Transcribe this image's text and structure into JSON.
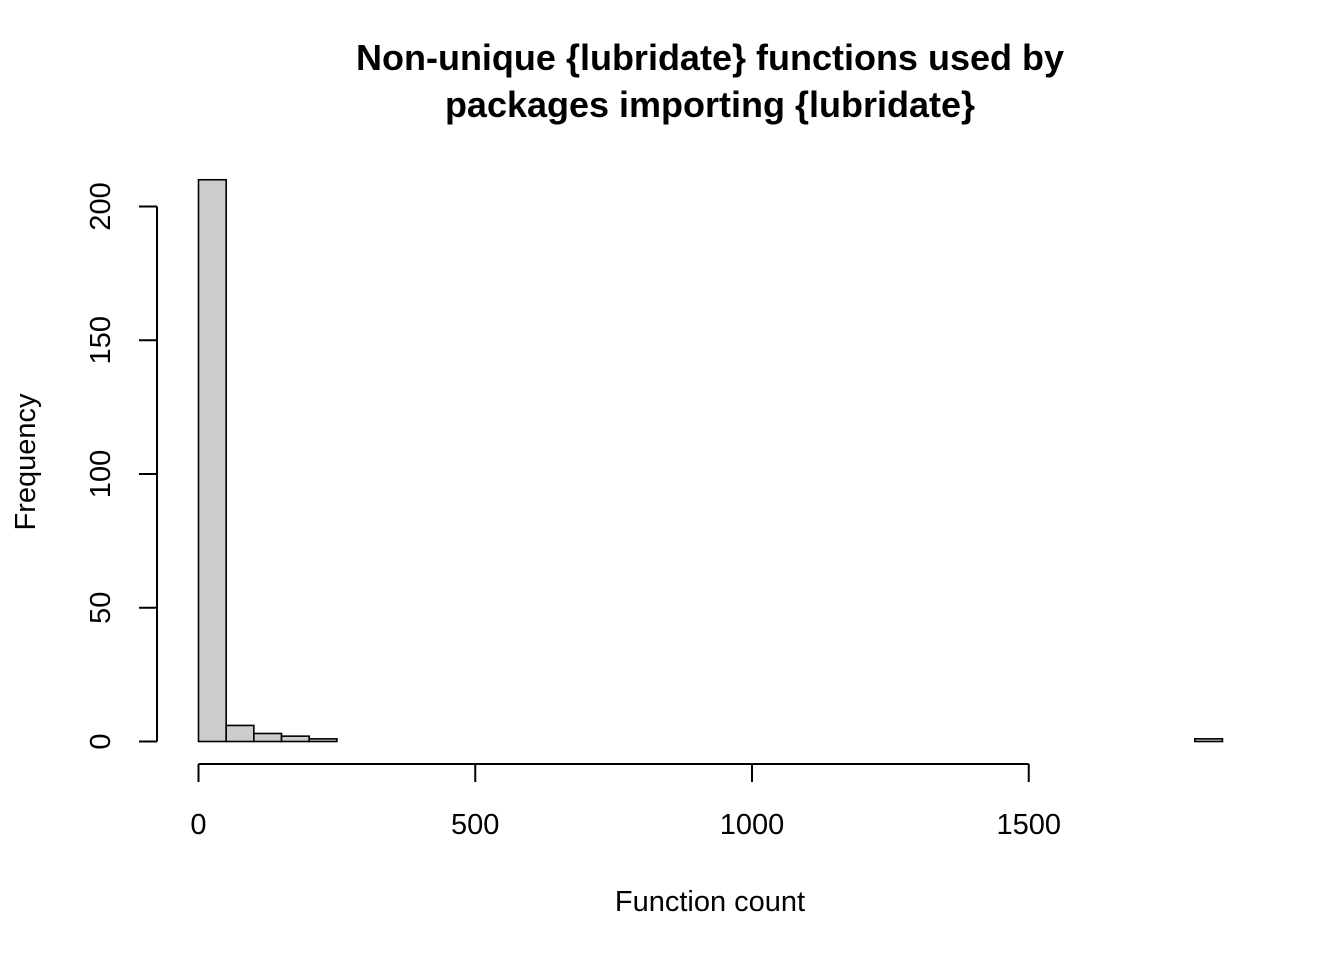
{
  "chart_data": {
    "type": "bar",
    "subtype": "histogram",
    "title_lines": [
      "Non-unique {lubridate} functions used by",
      "packages importing {lubridate}"
    ],
    "xlabel": "Function count",
    "ylabel": "Frequency",
    "xlim": [
      0,
      1850
    ],
    "ylim": [
      0,
      210
    ],
    "x_ticks": [
      0,
      500,
      1000,
      1500
    ],
    "x_tick_labels": [
      "0",
      "500",
      "1000",
      "1500"
    ],
    "y_ticks": [
      0,
      50,
      100,
      150,
      200
    ],
    "y_tick_labels": [
      "0",
      "50",
      "100",
      "150",
      "200"
    ],
    "bin_width": 50,
    "bin_starts": [
      0,
      50,
      100,
      150,
      200,
      250,
      300,
      350,
      400,
      450,
      500,
      550,
      600,
      650,
      700,
      750,
      800,
      850,
      900,
      950,
      1000,
      1050,
      1100,
      1150,
      1200,
      1250,
      1300,
      1350,
      1400,
      1450,
      1500,
      1550,
      1600,
      1650,
      1700,
      1750,
      1800
    ],
    "values": [
      210,
      6,
      3,
      2,
      1,
      0,
      0,
      0,
      0,
      0,
      0,
      0,
      0,
      0,
      0,
      0,
      0,
      0,
      0,
      0,
      0,
      0,
      0,
      0,
      0,
      0,
      0,
      0,
      0,
      0,
      0,
      0,
      0,
      0,
      0,
      0,
      1
    ],
    "bar_fill": "#cccccc",
    "bar_stroke": "#000000",
    "grid": false,
    "legend": "none"
  }
}
